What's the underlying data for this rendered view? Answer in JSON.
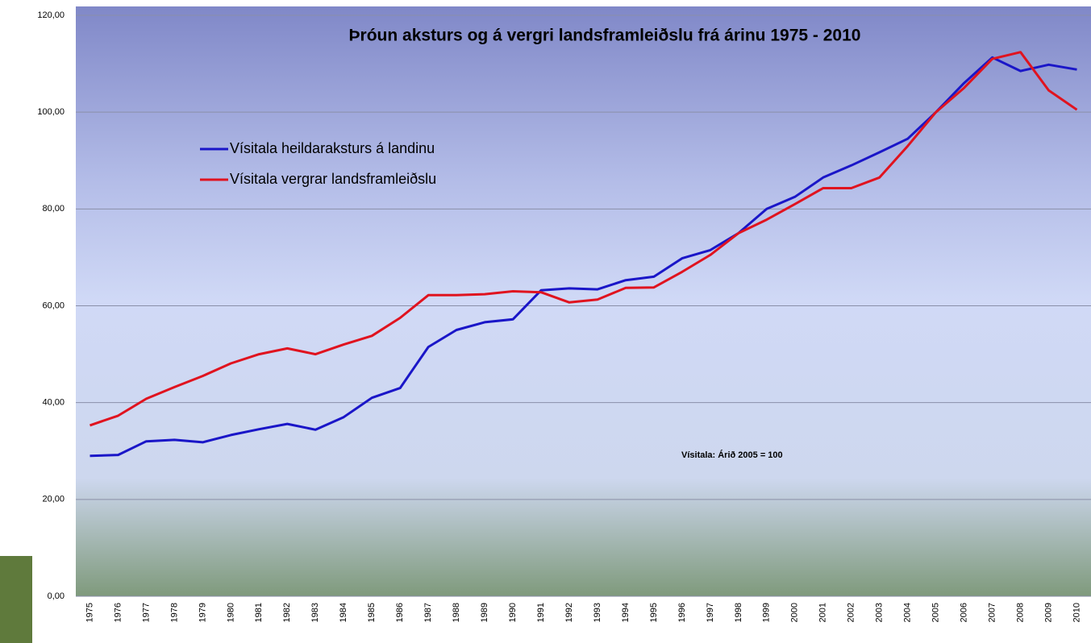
{
  "chart_data": {
    "type": "line",
    "title": "Þróun aksturs og á vergri landsframleiðslu frá árinu 1975 - 2010",
    "annotation": "Vísitala: Árið 2005 = 100",
    "categories": [
      "1975",
      "1976",
      "1977",
      "1978",
      "1979",
      "1980",
      "1981",
      "1982",
      "1983",
      "1984",
      "1985",
      "1986",
      "1987",
      "1988",
      "1989",
      "1990",
      "1991",
      "1992",
      "1993",
      "1994",
      "1995",
      "1996",
      "1997",
      "1998",
      "1999",
      "2000",
      "2001",
      "2002",
      "2003",
      "2004",
      "2005",
      "2006",
      "2007",
      "2008",
      "2009",
      "2010"
    ],
    "series": [
      {
        "name": "Vísitala heildaraksturs á landinu",
        "color": "#1a16c8",
        "values": [
          29,
          29.2,
          32,
          32.3,
          31.8,
          33.3,
          34.5,
          35.6,
          34.4,
          37,
          41,
          43,
          51.5,
          55,
          56.6,
          57.2,
          63.2,
          63.6,
          63.4,
          65.3,
          66,
          69.8,
          71.5,
          75,
          80,
          82.5,
          86.5,
          89,
          91.7,
          94.5,
          100,
          106,
          111.3,
          108.5,
          109.8,
          108.8
        ]
      },
      {
        "name": "Vísitala vergrar landsframleiðslu",
        "color": "#e0131f",
        "values": [
          35.3,
          37.3,
          40.8,
          43.2,
          45.5,
          48.1,
          50,
          51.2,
          50,
          52,
          53.8,
          57.5,
          62.2,
          62.2,
          62.4,
          63,
          62.8,
          60.7,
          61.3,
          63.7,
          63.8,
          67,
          70.5,
          75,
          77.8,
          81,
          84.3,
          84.3,
          86.5,
          93,
          100,
          105,
          111,
          112.4,
          104.5,
          100.5
        ]
      }
    ],
    "ylim": [
      0,
      120
    ],
    "yticks": [
      {
        "value": 0,
        "label": "0,00"
      },
      {
        "value": 20,
        "label": "20,00"
      },
      {
        "value": 40,
        "label": "40,00"
      },
      {
        "value": 60,
        "label": "60,00"
      },
      {
        "value": 80,
        "label": "80,00"
      },
      {
        "value": 100,
        "label": "100,00"
      },
      {
        "value": 120,
        "label": "120,00"
      }
    ],
    "grid": true
  }
}
